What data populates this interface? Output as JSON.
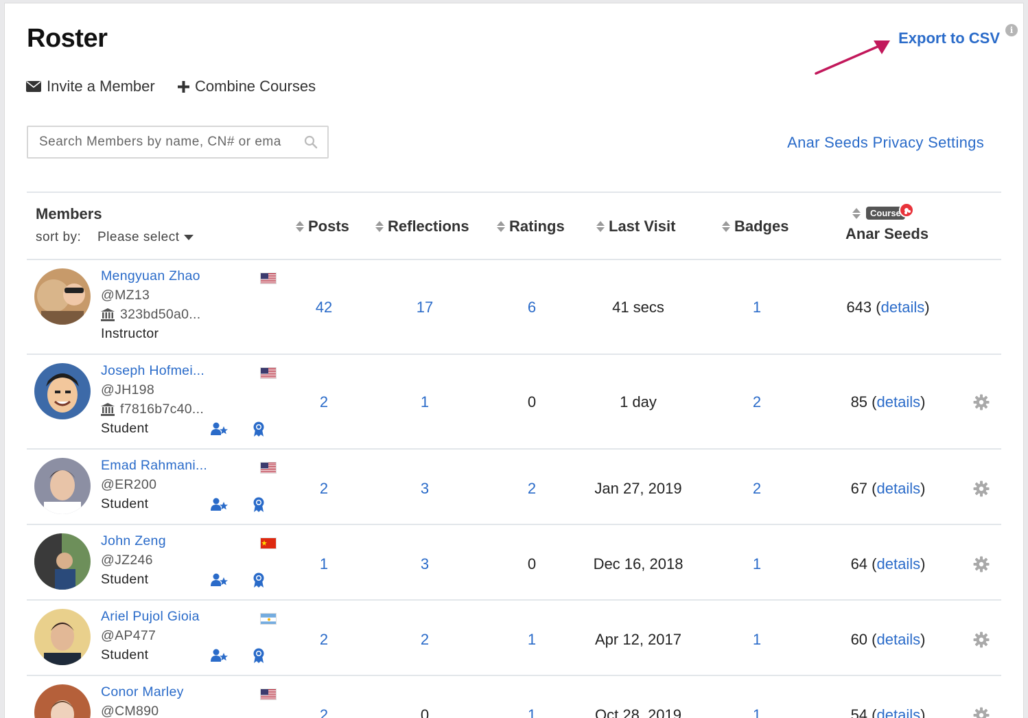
{
  "page": {
    "title": "Roster",
    "invite_label": "Invite a Member",
    "combine_label": "Combine Courses",
    "export_label": "Export to CSV",
    "info_icon": "i",
    "search_placeholder": "Search Members by name, CN# or ema",
    "privacy_label": "Anar Seeds Privacy Settings"
  },
  "table": {
    "members_title": "Members",
    "sort_by_label": "sort by:",
    "sort_select_value": "Please select",
    "columns": {
      "posts": "Posts",
      "reflections": "Reflections",
      "ratings": "Ratings",
      "last_visit": "Last Visit",
      "badges": "Badges",
      "seeds_badge": "Course",
      "seeds": "Anar Seeds"
    },
    "details_label": "details",
    "rows": [
      {
        "name": "Mengyuan Zhao",
        "handle": "@MZ13",
        "institution_id": "323bd50a0...",
        "role": "Instructor",
        "flag": "us",
        "posts": "42",
        "reflections": "17",
        "ratings": "6",
        "last_visit": "41 secs",
        "badges": "1",
        "seeds": "643",
        "has_role_icons": false,
        "has_settings": false
      },
      {
        "name": "Joseph Hofmei...",
        "handle": "@JH198",
        "institution_id": "f7816b7c40...",
        "role": "Student",
        "flag": "us",
        "posts": "2",
        "reflections": "1",
        "ratings": "0",
        "last_visit": "1 day",
        "badges": "2",
        "seeds": "85",
        "has_role_icons": true,
        "has_settings": true
      },
      {
        "name": "Emad Rahmani...",
        "handle": "@ER200",
        "role": "Student",
        "flag": "us",
        "posts": "2",
        "reflections": "3",
        "ratings": "2",
        "last_visit": "Jan 27, 2019",
        "badges": "2",
        "seeds": "67",
        "has_role_icons": true,
        "has_settings": true
      },
      {
        "name": "John Zeng",
        "handle": "@JZ246",
        "role": "Student",
        "flag": "cn",
        "posts": "1",
        "reflections": "3",
        "ratings": "0",
        "last_visit": "Dec 16, 2018",
        "badges": "1",
        "seeds": "64",
        "has_role_icons": true,
        "has_settings": true
      },
      {
        "name": "Ariel Pujol Gioia",
        "handle": "@AP477",
        "role": "Student",
        "flag": "ar",
        "posts": "2",
        "reflections": "2",
        "ratings": "1",
        "last_visit": "Apr 12, 2017",
        "badges": "1",
        "seeds": "60",
        "has_role_icons": true,
        "has_settings": true
      },
      {
        "name": "Conor Marley",
        "handle": "@CM890",
        "role": "",
        "flag": "us",
        "posts": "2",
        "reflections": "0",
        "ratings": "1",
        "last_visit": "Oct 28, 2019",
        "badges": "1",
        "seeds": "54",
        "has_role_icons": false,
        "has_settings": true
      }
    ]
  },
  "colors": {
    "link": "#2a6bc9",
    "arrow": "#c2185b",
    "border": "#e2e6ea"
  },
  "icons": {
    "invite": "envelope-icon",
    "combine": "plus-icon",
    "search": "search-icon",
    "sort": "sort-icon",
    "institution": "bank-icon",
    "role": "user-star-icon",
    "badge": "ribbon-icon",
    "settings": "gear-icon",
    "seed": "pomegranate-icon"
  }
}
